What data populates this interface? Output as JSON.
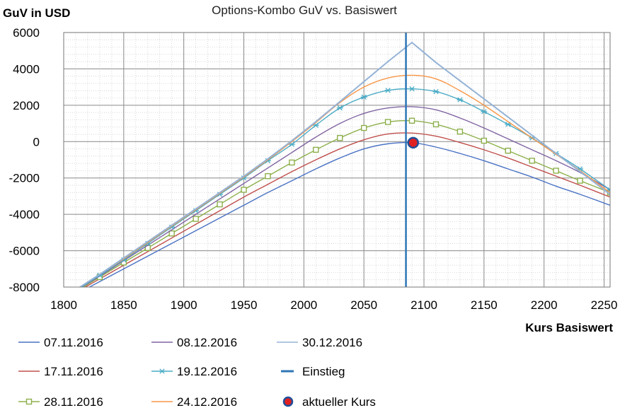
{
  "chart_data": {
    "type": "line",
    "title": "Options-Kombo GuV vs. Basiswert",
    "ylabel": "GuV in USD",
    "xlabel": "Kurs Basiswert",
    "xlim": [
      1800,
      2255
    ],
    "ylim": [
      -8000,
      6000
    ],
    "xticks": [
      "1800",
      "1850",
      "1900",
      "1950",
      "2000",
      "2050",
      "2100",
      "2150",
      "2200",
      "2250"
    ],
    "yticks": [
      "6000",
      "4000",
      "2000",
      "0",
      "-2000",
      "-4000",
      "-6000",
      "-8000"
    ],
    "grid": true,
    "legend_position": "bottom",
    "x": [
      1810,
      1830,
      1850,
      1870,
      1890,
      1910,
      1930,
      1950,
      1970,
      1990,
      2010,
      2030,
      2050,
      2070,
      2090,
      2110,
      2130,
      2150,
      2170,
      2190,
      2210,
      2230,
      2255
    ],
    "series": [
      {
        "name": "07.11.2016",
        "color": "#4a72c4",
        "marker": "none",
        "values": [
          -8400,
          -7700,
          -7000,
          -6300,
          -5600,
          -4900,
          -4200,
          -3500,
          -2800,
          -2150,
          -1500,
          -900,
          -400,
          -120,
          -60,
          -300,
          -650,
          -1050,
          -1500,
          -1950,
          -2450,
          -2900,
          -3500
        ]
      },
      {
        "name": "17.11.2016",
        "color": "#c0504d",
        "marker": "none",
        "values": [
          -8300,
          -7550,
          -6800,
          -6050,
          -5300,
          -4550,
          -3800,
          -3050,
          -2350,
          -1650,
          -1000,
          -400,
          100,
          420,
          470,
          300,
          -50,
          -450,
          -900,
          -1400,
          -1900,
          -2400,
          -3050
        ]
      },
      {
        "name": "28.11.2016",
        "color": "#8db04b",
        "marker": "square",
        "values": [
          -8250,
          -7450,
          -6650,
          -5850,
          -5050,
          -4250,
          -3450,
          -2650,
          -1900,
          -1150,
          -450,
          200,
          750,
          1080,
          1150,
          950,
          550,
          50,
          -500,
          -1050,
          -1600,
          -2150,
          -2800
        ]
      },
      {
        "name": "08.12.2016",
        "color": "#8064a2",
        "marker": "none",
        "values": [
          -8200,
          -7400,
          -6550,
          -5700,
          -4850,
          -4000,
          -3150,
          -2300,
          -1450,
          -600,
          250,
          1000,
          1550,
          1850,
          1920,
          1750,
          1300,
          750,
          150,
          -450,
          -1050,
          -1700,
          -2650
        ]
      },
      {
        "name": "19.12.2016",
        "color": "#4bacc6",
        "marker": "star",
        "values": [
          -8200,
          -7350,
          -6500,
          -5600,
          -4700,
          -3800,
          -2900,
          -2000,
          -1050,
          -150,
          900,
          1850,
          2450,
          2820,
          2900,
          2750,
          2300,
          1650,
          950,
          200,
          -650,
          -1500,
          -2650
        ]
      },
      {
        "name": "24.12.2016",
        "color": "#f79646",
        "marker": "none",
        "values": [
          -8150,
          -7300,
          -6450,
          -5550,
          -4650,
          -3750,
          -2850,
          -1950,
          -1000,
          0,
          1050,
          2150,
          3000,
          3500,
          3650,
          3450,
          2800,
          2000,
          1100,
          200,
          -700,
          -1600,
          -2800
        ]
      },
      {
        "name": "30.12.2016",
        "color": "#95b3d7",
        "marker": "none",
        "values": [
          -8150,
          -7300,
          -6400,
          -5500,
          -4600,
          -3700,
          -2800,
          -1900,
          -950,
          50,
          1100,
          2200,
          3300,
          4400,
          5450,
          4350,
          3350,
          2350,
          1350,
          350,
          -650,
          -1650,
          -2900
        ]
      }
    ],
    "entry": {
      "name": "Einstieg",
      "x": 2085,
      "color": "#2e75b6"
    },
    "current_price": {
      "name": "aktueller Kurs",
      "x": 2091,
      "y": -60,
      "color": "#e02020",
      "edge": "#1f4e9a"
    }
  }
}
